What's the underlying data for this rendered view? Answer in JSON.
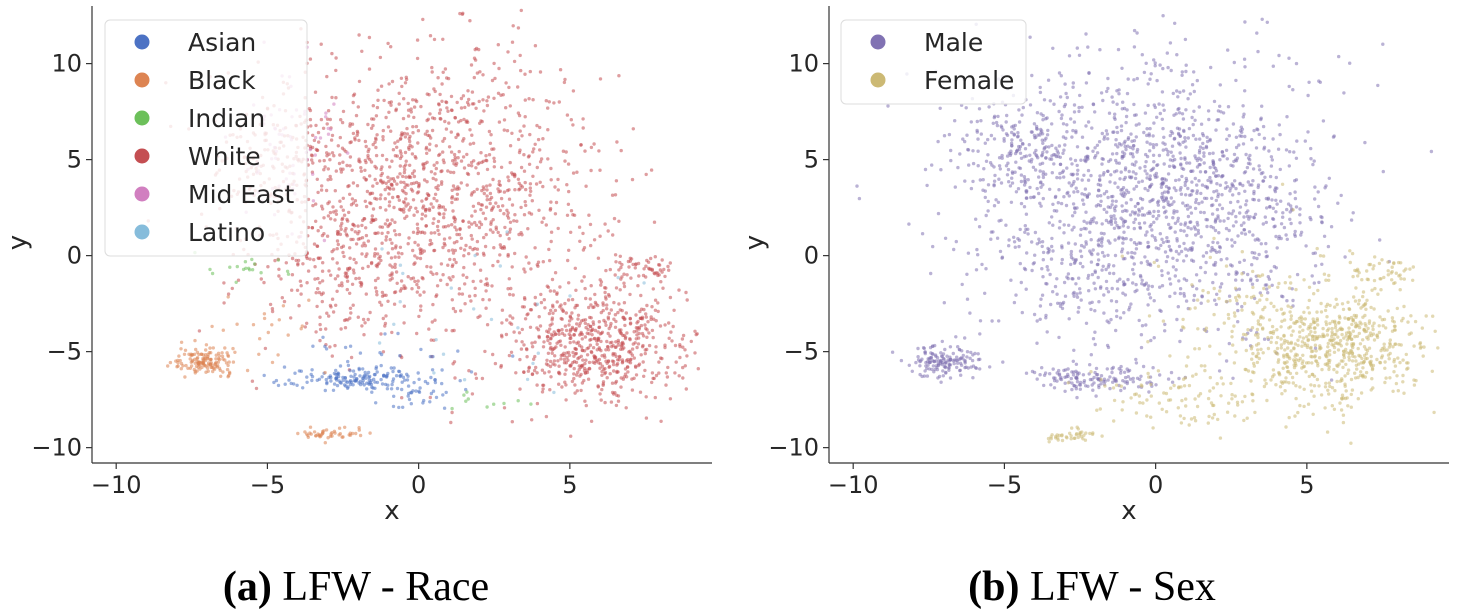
{
  "chart_data": [
    {
      "type": "scatter",
      "caption_letter": "(a)",
      "caption_text": "LFW - Race",
      "xlabel": "x",
      "ylabel": "y",
      "xlim": [
        -10.8,
        9.7
      ],
      "ylim": [
        -10.8,
        13
      ],
      "xticks": [
        -10,
        -5,
        0,
        5
      ],
      "yticks": [
        -10,
        -5,
        0,
        5,
        10
      ],
      "xtick_labels": [
        "−10",
        "−5",
        "0",
        "5"
      ],
      "ytick_labels": [
        "−10",
        "−5",
        "0",
        "5",
        "10"
      ],
      "grid": false,
      "legend_position": "top-left",
      "series": [
        {
          "name": "Asian",
          "color": "#4c72c4"
        },
        {
          "name": "Black",
          "color": "#dd8452"
        },
        {
          "name": "Indian",
          "color": "#6cc05a"
        },
        {
          "name": "White",
          "color": "#c44e52"
        },
        {
          "name": "Mid East",
          "color": "#d17fc0"
        },
        {
          "name": "Latino",
          "color": "#86bcdb"
        }
      ],
      "clusters": [
        {
          "series": "White",
          "cx": 0.3,
          "cy": 3.4,
          "sx": 2.9,
          "sy": 3.6,
          "n": 1300
        },
        {
          "series": "White",
          "cx": 5.9,
          "cy": -4.6,
          "sx": 1.5,
          "sy": 1.5,
          "n": 650
        },
        {
          "series": "White",
          "cx": -2.5,
          "cy": -0.5,
          "sx": 1.6,
          "sy": 1.6,
          "n": 160
        },
        {
          "series": "White",
          "cx": -4.6,
          "cy": 5.4,
          "sx": 0.9,
          "sy": 1.3,
          "n": 100
        },
        {
          "series": "White",
          "cx": 7.4,
          "cy": -0.7,
          "sx": 0.5,
          "sy": 0.4,
          "n": 50
        },
        {
          "series": "Mid East",
          "cx": -4.5,
          "cy": 5.5,
          "sx": 0.9,
          "sy": 1.8,
          "n": 70
        },
        {
          "series": "Asian",
          "cx": -2.2,
          "cy": -6.4,
          "sx": 1.1,
          "sy": 0.3,
          "n": 150
        },
        {
          "series": "Asian",
          "cx": 0.1,
          "cy": -7.2,
          "sx": 0.8,
          "sy": 0.5,
          "n": 40
        },
        {
          "series": "Asian",
          "cx": -1.3,
          "cy": -5.0,
          "sx": 1.5,
          "sy": 0.6,
          "n": 20
        },
        {
          "series": "Black",
          "cx": -7.0,
          "cy": -5.5,
          "sx": 0.5,
          "sy": 0.4,
          "n": 140
        },
        {
          "series": "Black",
          "cx": -2.9,
          "cy": -9.3,
          "sx": 0.5,
          "sy": 0.15,
          "n": 45
        },
        {
          "series": "Black",
          "cx": -4.8,
          "cy": -3.8,
          "sx": 1.2,
          "sy": 0.9,
          "n": 20
        },
        {
          "series": "Indian",
          "cx": -5.5,
          "cy": -0.6,
          "sx": 0.9,
          "sy": 0.4,
          "n": 18
        },
        {
          "series": "Indian",
          "cx": 2.8,
          "cy": -7.6,
          "sx": 0.9,
          "sy": 0.3,
          "n": 10
        },
        {
          "series": "Latino",
          "cx": 1.5,
          "cy": -3.5,
          "sx": 3.0,
          "sy": 2.5,
          "n": 25
        }
      ]
    },
    {
      "type": "scatter",
      "caption_letter": "(b)",
      "caption_text": "LFW - Sex",
      "xlabel": "x",
      "ylabel": "y",
      "xlim": [
        -10.8,
        9.7
      ],
      "ylim": [
        -10.8,
        13
      ],
      "xticks": [
        -10,
        -5,
        0,
        5
      ],
      "yticks": [
        -10,
        -5,
        0,
        5,
        10
      ],
      "xtick_labels": [
        "−10",
        "−5",
        "0",
        "5"
      ],
      "ytick_labels": [
        "−10",
        "−5",
        "0",
        "5",
        "10"
      ],
      "grid": false,
      "legend_position": "top-left",
      "series": [
        {
          "name": "Male",
          "color": "#8172b3"
        },
        {
          "name": "Female",
          "color": "#ccb974"
        }
      ],
      "clusters": [
        {
          "series": "Male",
          "cx": -0.3,
          "cy": 3.4,
          "sx": 2.8,
          "sy": 3.5,
          "n": 1350
        },
        {
          "series": "Male",
          "cx": -4.6,
          "cy": 5.4,
          "sx": 0.9,
          "sy": 1.3,
          "n": 150
        },
        {
          "series": "Male",
          "cx": -7.0,
          "cy": -5.5,
          "sx": 0.6,
          "sy": 0.4,
          "n": 150
        },
        {
          "series": "Male",
          "cx": -2.0,
          "cy": -6.4,
          "sx": 1.2,
          "sy": 0.35,
          "n": 140
        },
        {
          "series": "Male",
          "cx": -2.5,
          "cy": -0.5,
          "sx": 2.0,
          "sy": 1.8,
          "n": 150
        },
        {
          "series": "Male",
          "cx": 3.0,
          "cy": 1.5,
          "sx": 1.3,
          "sy": 2.5,
          "n": 120
        },
        {
          "series": "Female",
          "cx": 5.9,
          "cy": -4.6,
          "sx": 1.5,
          "sy": 1.5,
          "n": 650
        },
        {
          "series": "Female",
          "cx": 1.5,
          "cy": -7.3,
          "sx": 1.6,
          "sy": 0.8,
          "n": 110
        },
        {
          "series": "Female",
          "cx": 3.0,
          "cy": -2.5,
          "sx": 1.5,
          "sy": 2.0,
          "n": 80
        },
        {
          "series": "Female",
          "cx": -2.9,
          "cy": -9.4,
          "sx": 0.5,
          "sy": 0.15,
          "n": 40
        },
        {
          "series": "Female",
          "cx": 7.4,
          "cy": -0.8,
          "sx": 0.5,
          "sy": 0.4,
          "n": 40
        }
      ]
    }
  ]
}
